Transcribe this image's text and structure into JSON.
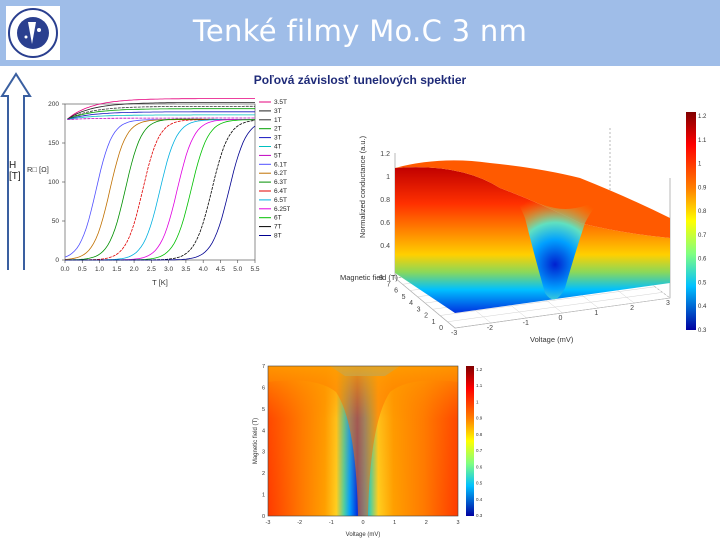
{
  "slide": {
    "title": "Tenké filmy Mo.C 3 nm",
    "subtitle": "Poľová závislosť tunelových spektier",
    "logo_text": "ŠEV - CENTRUM - KOŠICE"
  },
  "field_arrow": {
    "label_line1": "H",
    "label_line2": "[T]"
  },
  "colors": {
    "header_bg": "#9fbde8",
    "subtitle": "#1e2a78",
    "arrow_stroke": "#3a5fa0"
  },
  "chart_data": [
    {
      "type": "line",
      "ylabel": "R□ [Ω]",
      "xlabel": "T [K]",
      "xlim": [
        0,
        5.5
      ],
      "ylim": [
        0,
        200
      ],
      "x_ticks": [
        0.0,
        0.5,
        1.0,
        1.5,
        2.0,
        2.5,
        3.0,
        3.5,
        4.0,
        4.5,
        5.0,
        5.5
      ],
      "x_tick_labels": [
        "0.0",
        "0.5",
        "1.0",
        "1.5",
        "2.0",
        "2.5",
        "3.0",
        "3.5",
        "4.0",
        "4.5",
        "5.0",
        "5.5"
      ],
      "y_ticks": [
        0,
        50,
        100,
        150,
        200
      ],
      "y_tick_labels": [
        "0",
        "50",
        "100",
        "150",
        "200"
      ],
      "legend_position": "right",
      "series": [
        {
          "name": "3.5T",
          "color": "#e6007e",
          "t_c": null,
          "r_max": 207
        },
        {
          "name": "3T",
          "color": "#222222",
          "t_c": null,
          "r_max": 202
        },
        {
          "name": "1T",
          "color": "#333333",
          "t_c": null,
          "r_max": 197
        },
        {
          "name": "2T",
          "color": "#00a000",
          "t_c": null,
          "r_max": 194
        },
        {
          "name": "3T",
          "color": "#1515c0",
          "t_c": null,
          "r_max": 190
        },
        {
          "name": "4T",
          "color": "#00c0c0",
          "t_c": null,
          "r_max": 186
        },
        {
          "name": "5T",
          "color": "#c000c0",
          "t_c": null,
          "r_max": 182
        },
        {
          "name": "6.1T",
          "color": "#5050ff",
          "t_c": 0.55,
          "r_max": 180
        },
        {
          "name": "6.2T",
          "color": "#c07000",
          "t_c": 0.95,
          "r_max": 180
        },
        {
          "name": "6.3T",
          "color": "#009000",
          "t_c": 1.4,
          "r_max": 180
        },
        {
          "name": "6.4T",
          "color": "#e00000",
          "t_c": 1.9,
          "r_max": 180
        },
        {
          "name": "6.5T",
          "color": "#00b0e0",
          "t_c": 2.4,
          "r_max": 180
        },
        {
          "name": "6.25T",
          "color": "#e000e0",
          "t_c": 2.9,
          "r_max": 180
        },
        {
          "name": "6T",
          "color": "#00c000",
          "t_c": 3.3,
          "r_max": 180
        },
        {
          "name": "7T",
          "color": "#000000",
          "t_c": 3.9,
          "r_max": 180
        },
        {
          "name": "8T",
          "color": "#000090",
          "t_c": 4.4,
          "r_max": 180
        }
      ]
    },
    {
      "type": "surface",
      "zlabel": "Normalized conductance (a.u.)",
      "xlabel": "Voltage (mV)",
      "ylabel": "Magnetic field (T)",
      "x_tick_labels": [
        "-3",
        "-2",
        "-1",
        "0",
        "1",
        "2",
        "3"
      ],
      "y_tick_labels": [
        "0",
        "1",
        "2",
        "3",
        "4",
        "5",
        "6",
        "7",
        "8"
      ],
      "z_tick_labels": [
        "0.4",
        "0.6",
        "0.8",
        "1",
        "1.2"
      ],
      "colorbar_ticks": [
        "1.2",
        "1.1",
        "1",
        "0.9",
        "0.8",
        "0.7",
        "0.6",
        "0.5",
        "0.4",
        "0.3"
      ]
    },
    {
      "type": "heatmap",
      "xlabel": "Voltage (mV)",
      "ylabel": "Magnetic field (T)",
      "x_tick_labels": [
        "-3",
        "-2",
        "-1",
        "0",
        "1",
        "2",
        "3"
      ],
      "y_tick_labels": [
        "0",
        "1",
        "2",
        "3",
        "4",
        "5",
        "6",
        "7"
      ],
      "colorbar_ticks": [
        "1.2",
        "1.1",
        "1",
        "0.9",
        "0.8",
        "0.7",
        "0.6",
        "0.5",
        "0.4",
        "0.3"
      ]
    }
  ]
}
